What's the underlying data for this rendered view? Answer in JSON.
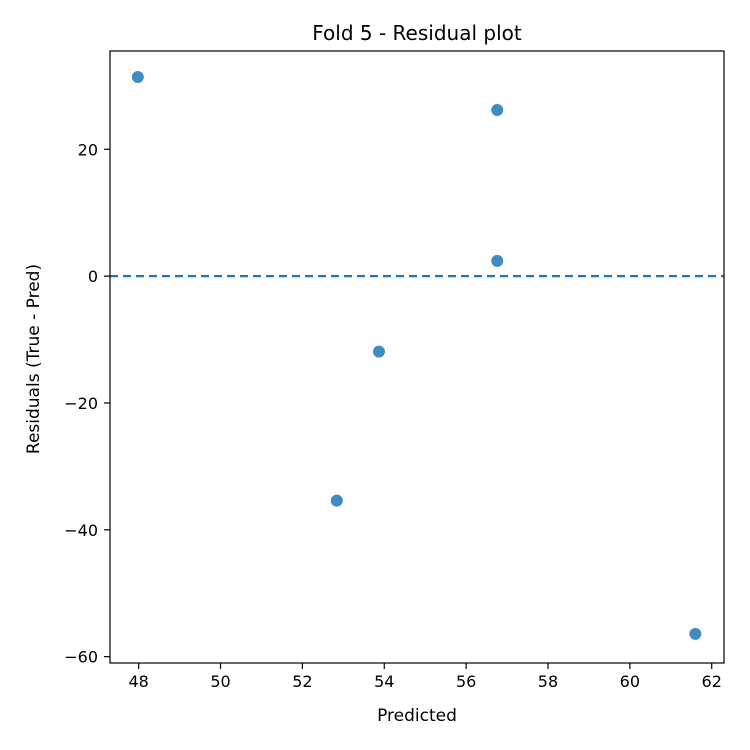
{
  "chart_data": {
    "type": "scatter",
    "title": "Fold 5 - Residual plot",
    "xlabel": "Predicted",
    "ylabel": "Residuals (True - Pred)",
    "xlim": [
      47.3,
      62.3
    ],
    "ylim": [
      -61,
      35.5
    ],
    "xticks": [
      48,
      50,
      52,
      54,
      56,
      58,
      60,
      62
    ],
    "yticks": [
      -60,
      -40,
      -20,
      0,
      20
    ],
    "ytick_labels": [
      "−60",
      "−40",
      "−20",
      "0",
      "20"
    ],
    "grid": false,
    "points": [
      {
        "x": 47.98,
        "y": 31.4
      },
      {
        "x": 56.76,
        "y": 26.2
      },
      {
        "x": 56.76,
        "y": 2.4
      },
      {
        "x": 53.87,
        "y": -11.9
      },
      {
        "x": 52.84,
        "y": -35.4
      },
      {
        "x": 61.6,
        "y": -56.4
      }
    ],
    "reference_line": {
      "y": 0,
      "style": "dashed"
    },
    "colors": {
      "points": "#1f77b4",
      "reference_line": "#1f77b4",
      "axes": "#000000"
    }
  }
}
